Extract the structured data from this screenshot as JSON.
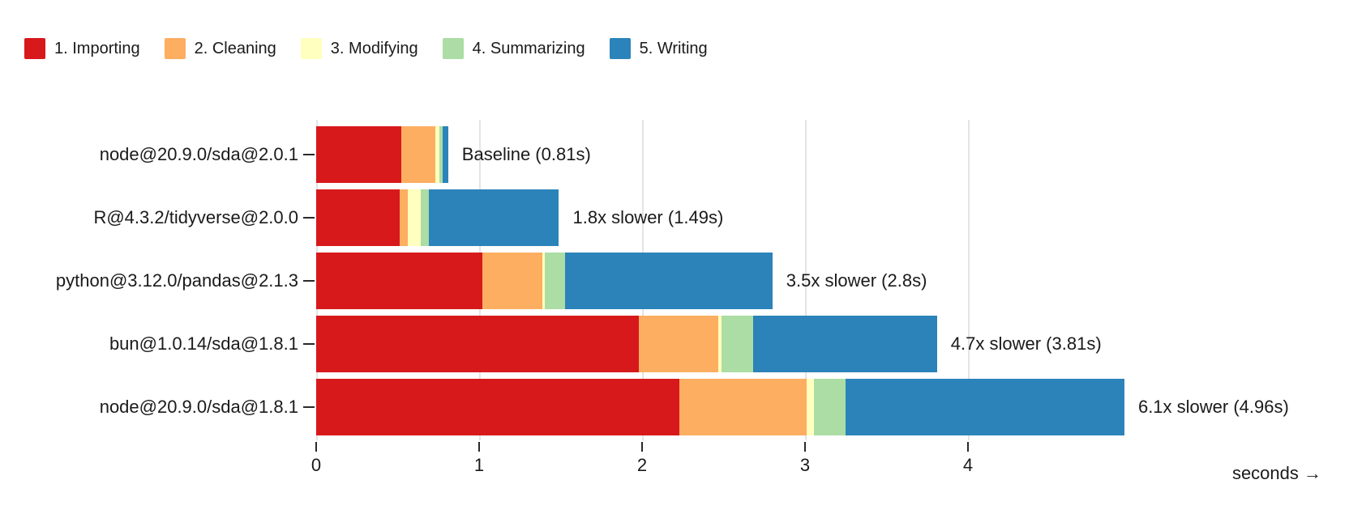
{
  "legend": {
    "items": [
      {
        "label": "1. Importing",
        "color": "#d7191c",
        "icon": "red-swatch-icon"
      },
      {
        "label": "2. Cleaning",
        "color": "#fdae61",
        "icon": "orange-swatch-icon"
      },
      {
        "label": "3. Modifying",
        "color": "#ffffbf",
        "icon": "yellow-swatch-icon"
      },
      {
        "label": "4. Summarizing",
        "color": "#abdda4",
        "icon": "green-swatch-icon"
      },
      {
        "label": "5. Writing",
        "color": "#2b83ba",
        "icon": "blue-swatch-icon"
      }
    ]
  },
  "chart_data": {
    "type": "bar",
    "orientation": "horizontal",
    "stacked": true,
    "title": "",
    "xlabel": "seconds →",
    "ylabel": "",
    "xlim": [
      0,
      5.2
    ],
    "x_ticks": [
      0,
      1,
      2,
      3,
      4
    ],
    "x_tick_labels": [
      "0",
      "1",
      "2",
      "3",
      "4"
    ],
    "grid": true,
    "legend_position": "top-left",
    "series_names": [
      "1. Importing",
      "2. Cleaning",
      "3. Modifying",
      "4. Summarizing",
      "5. Writing"
    ],
    "series_colors": [
      "#d7191c",
      "#fdae61",
      "#ffffbf",
      "#abdda4",
      "#2b83ba"
    ],
    "rows": [
      {
        "label": "node@20.9.0/sda@2.0.1",
        "annotation": "Baseline (0.81s)",
        "total_seconds": 0.81,
        "values": [
          0.52,
          0.21,
          0.025,
          0.02,
          0.035
        ]
      },
      {
        "label": "R@4.3.2/tidyverse@2.0.0",
        "annotation": "1.8x slower (1.49s)",
        "total_seconds": 1.49,
        "values": [
          0.51,
          0.05,
          0.08,
          0.05,
          0.8
        ]
      },
      {
        "label": "python@3.12.0/pandas@2.1.3",
        "annotation": "3.5x slower (2.8s)",
        "total_seconds": 2.8,
        "values": [
          1.02,
          0.37,
          0.015,
          0.12,
          1.275
        ]
      },
      {
        "label": "bun@1.0.14/sda@1.8.1",
        "annotation": "4.7x slower (3.81s)",
        "total_seconds": 3.81,
        "values": [
          1.98,
          0.49,
          0.02,
          0.19,
          1.13
        ]
      },
      {
        "label": "node@20.9.0/sda@1.8.1",
        "annotation": "6.1x slower (4.96s)",
        "total_seconds": 4.96,
        "values": [
          2.23,
          0.78,
          0.045,
          0.195,
          1.71
        ]
      }
    ]
  }
}
